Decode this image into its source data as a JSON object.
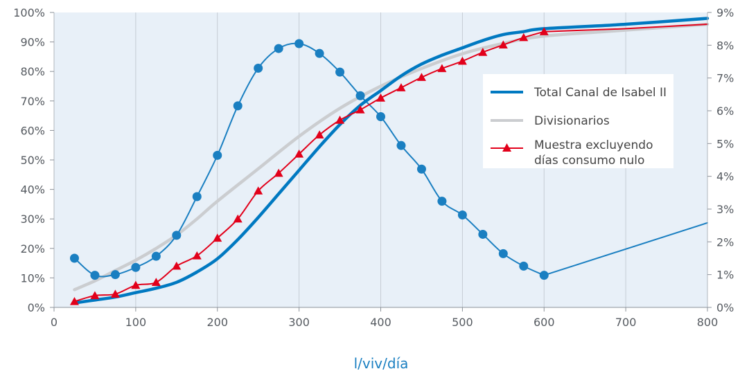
{
  "chart_data": {
    "type": "line",
    "title": "",
    "xlabel": "l/viv/día",
    "ylabel": "",
    "xlim": [
      0,
      800
    ],
    "ylim_left": [
      0,
      100
    ],
    "ylim_right": [
      0,
      9
    ],
    "x_ticks": [
      "0",
      "100",
      "200",
      "300",
      "400",
      "500",
      "600",
      "700",
      "800"
    ],
    "y_ticks_left": [
      "0%",
      "10%",
      "20%",
      "30%",
      "40%",
      "50%",
      "60%",
      "70%",
      "80%",
      "90%",
      "100%"
    ],
    "y_ticks_right": [
      "0%",
      "1%",
      "2%",
      "3%",
      "4%",
      "5%",
      "6%",
      "7%",
      "8%",
      "9%"
    ],
    "grid": "vertical",
    "legend_position": "right",
    "colors": {
      "total": "#0079c1",
      "divisionarios": "#cbcdd0",
      "muestra": "#e2001a",
      "distribucion": "#1a7fc1",
      "plot_bg": "#e8f0f8",
      "grid": "#c5ccd4"
    },
    "series": [
      {
        "name": "Total Canal de Isabel II",
        "axis": "left",
        "marker": "none",
        "x": [
          25,
          50,
          75,
          100,
          125,
          150,
          175,
          200,
          225,
          250,
          275,
          300,
          325,
          350,
          375,
          400,
          425,
          450,
          475,
          500,
          525,
          550,
          575,
          600,
          700,
          800
        ],
        "y": [
          1.5,
          2.5,
          3.5,
          5,
          6.5,
          8.5,
          12,
          16.5,
          23,
          30.5,
          38.5,
          46.5,
          54.5,
          62,
          68.5,
          73.5,
          78.5,
          82.5,
          85.5,
          88,
          90.5,
          92.5,
          93.5,
          94.5,
          96,
          98
        ]
      },
      {
        "name": "Divisionarios",
        "axis": "left",
        "marker": "none",
        "x": [
          25,
          50,
          75,
          100,
          125,
          150,
          175,
          200,
          250,
          300,
          350,
          400,
          450,
          500,
          550,
          600,
          700,
          800
        ],
        "y": [
          6,
          9,
          12.5,
          16,
          20,
          24.5,
          30,
          36,
          47,
          58,
          67.5,
          75,
          81,
          86,
          89.5,
          92,
          94,
          96
        ]
      },
      {
        "name": "Muestra excluyendo días consumo nulo",
        "axis": "left",
        "marker": "triangle",
        "x": [
          25,
          50,
          75,
          100,
          125,
          150,
          175,
          200,
          225,
          250,
          275,
          300,
          325,
          350,
          375,
          400,
          425,
          450,
          475,
          500,
          525,
          550,
          575,
          600
        ],
        "y": [
          2,
          4,
          4.5,
          7.5,
          8.5,
          14,
          17.5,
          23.5,
          30,
          39.5,
          45.5,
          52,
          58.5,
          63.5,
          67,
          71,
          74.5,
          78,
          81,
          83.5,
          86.5,
          89,
          91.5,
          93.5
        ],
        "extension": {
          "x": [
            600,
            700,
            800
          ],
          "y": [
            93.5,
            94.5,
            96
          ]
        }
      },
      {
        "name": "",
        "axis": "right",
        "marker": "circle",
        "x": [
          25,
          50,
          75,
          100,
          125,
          150,
          175,
          200,
          225,
          250,
          275,
          300,
          325,
          350,
          375,
          400,
          425,
          450,
          475,
          500,
          525,
          550,
          575,
          600
        ],
        "y": [
          1.5,
          0.98,
          1.0,
          1.22,
          1.56,
          2.2,
          3.38,
          4.64,
          6.15,
          7.3,
          7.9,
          8.05,
          7.75,
          7.18,
          6.46,
          5.82,
          4.94,
          4.22,
          3.24,
          2.82,
          2.23,
          1.64,
          1.26,
          0.98
        ],
        "extension": {
          "x": [
            600,
            800
          ],
          "y": [
            0.98,
            2.58
          ]
        }
      }
    ],
    "legend": [
      {
        "label": "Total Canal de Isabel II"
      },
      {
        "label": "Divisionarios"
      },
      {
        "label": "Muestra excluyendo",
        "label2": "días consumo nulo"
      }
    ]
  }
}
